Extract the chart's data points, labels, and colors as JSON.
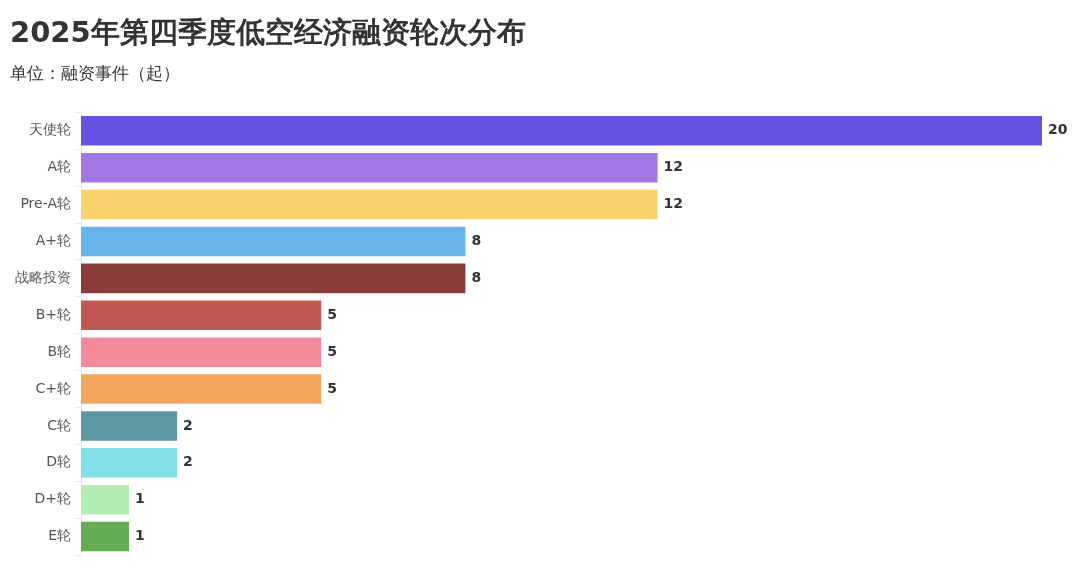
{
  "chart_data": {
    "type": "bar",
    "orientation": "horizontal",
    "title": "2025年第四季度低空经济融资轮次分布",
    "subtitle": "单位：融资事件（起）",
    "categories": [
      "天使轮",
      "A轮",
      "Pre-A轮",
      "A+轮",
      "战略投资",
      "B+轮",
      "B轮",
      "C+轮",
      "C轮",
      "D轮",
      "D+轮",
      "E轮"
    ],
    "values": [
      20,
      12,
      12,
      8,
      8,
      5,
      5,
      5,
      2,
      2,
      1,
      1
    ],
    "colors": [
      "#6452e2",
      "#a377e3",
      "#f7d26b",
      "#6ab4ec",
      "#8a3d38",
      "#c25852",
      "#f28a9b",
      "#f4a55c",
      "#5b96a2",
      "#80dfe8",
      "#b1ecb3",
      "#64ad55"
    ],
    "data_labels": true,
    "tick_labels": "y"
  }
}
